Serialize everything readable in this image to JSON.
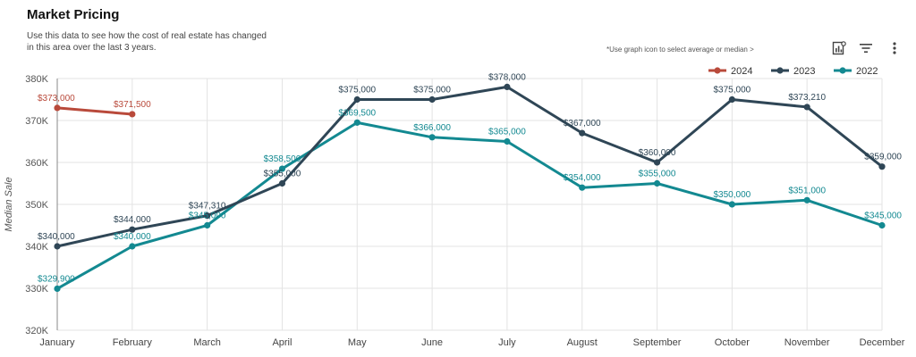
{
  "header": {
    "title": "Market Pricing",
    "subtitle": "Use this data to see how the cost of real estate has changed in this area over the last 3 years.",
    "hint": "*Use graph icon to  select average or median >"
  },
  "toolbar": {
    "icons": [
      "chart-options-icon",
      "filter-icon",
      "more-vertical-icon"
    ]
  },
  "chart_data": {
    "type": "line",
    "ylabel": "Median Sale",
    "xlabel": "",
    "categories": [
      "January",
      "February",
      "March",
      "April",
      "May",
      "June",
      "July",
      "August",
      "September",
      "October",
      "November",
      "December"
    ],
    "ylim": [
      320000,
      380000
    ],
    "y_ticks": [
      320000,
      330000,
      340000,
      350000,
      360000,
      370000,
      380000
    ],
    "y_tick_labels": [
      "320K",
      "330K",
      "340K",
      "350K",
      "360K",
      "370K",
      "380K"
    ],
    "grid": true,
    "legend_position": "top-right",
    "series": [
      {
        "name": "2024",
        "color": "#b94a3b",
        "values": [
          373000,
          371500,
          null,
          null,
          null,
          null,
          null,
          null,
          null,
          null,
          null,
          null
        ],
        "labels": [
          "$373,000",
          "$371,500",
          "",
          "",
          "",
          "",
          "",
          "",
          "",
          "",
          "",
          ""
        ]
      },
      {
        "name": "2023",
        "color": "#2f4656",
        "values": [
          340000,
          344000,
          347310,
          355000,
          375000,
          375000,
          378000,
          367000,
          360000,
          375000,
          373210,
          359000
        ],
        "labels": [
          "$340,000",
          "$344,000",
          "$347,310",
          "$355,000",
          "$375,000",
          "$375,000",
          "$378,000",
          "$367,000",
          "$360,000",
          "$375,000",
          "$373,210",
          "$359,000"
        ]
      },
      {
        "name": "2022",
        "color": "#138991",
        "values": [
          329900,
          340000,
          345000,
          358500,
          369500,
          366000,
          365000,
          354000,
          355000,
          350000,
          351000,
          345000
        ],
        "labels": [
          "$329,900",
          "$340,000",
          "$345,000",
          "$358,500",
          "$369,500",
          "$366,000",
          "$365,000",
          "$354,000",
          "$355,000",
          "$350,000",
          "$351,000",
          "$345,000"
        ]
      }
    ]
  }
}
